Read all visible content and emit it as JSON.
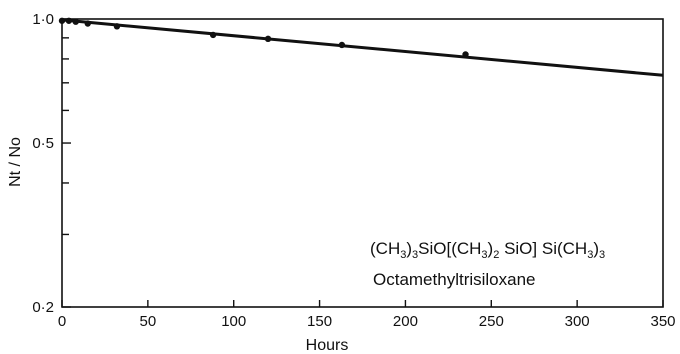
{
  "chart_data": {
    "type": "line",
    "title": "",
    "xlabel": "Hours",
    "ylabel": "Nt / No",
    "y_scale": "log",
    "xlim": [
      0,
      350
    ],
    "ylim": [
      0.2,
      1.0
    ],
    "grid": false,
    "x_ticks": [
      0,
      50,
      100,
      150,
      200,
      250,
      300,
      350
    ],
    "x_tick_labels": [
      "0",
      "50",
      "100",
      "150",
      "200",
      "250",
      "300",
      "350"
    ],
    "y_ticks": [
      0.2,
      0.3,
      0.4,
      0.5,
      0.6,
      0.7,
      0.8,
      0.9,
      1.0
    ],
    "y_tick_labels": {
      "0.2": "0·2",
      "0.5": "0·5",
      "1.0": "1·0"
    },
    "series": [
      {
        "points": [
          {
            "x": 0,
            "y": 0.99
          },
          {
            "x": 4,
            "y": 0.99
          },
          {
            "x": 8,
            "y": 0.985
          },
          {
            "x": 15,
            "y": 0.975
          },
          {
            "x": 32,
            "y": 0.96
          },
          {
            "x": 88,
            "y": 0.915
          },
          {
            "x": 120,
            "y": 0.895
          },
          {
            "x": 163,
            "y": 0.865
          },
          {
            "x": 235,
            "y": 0.82
          }
        ],
        "line": [
          {
            "x": 0,
            "y": 0.995
          },
          {
            "x": 350,
            "y": 0.73
          }
        ]
      }
    ],
    "annotations": {
      "formula": {
        "parts": [
          {
            "t": "(CH",
            "sub": false
          },
          {
            "t": "3",
            "sub": true
          },
          {
            "t": ")",
            "sub": false
          },
          {
            "t": "3",
            "sub": true
          },
          {
            "t": "SiO[(CH",
            "sub": false
          },
          {
            "t": "3",
            "sub": true
          },
          {
            "t": ")",
            "sub": false
          },
          {
            "t": "2",
            "sub": true
          },
          {
            "t": " SiO] Si(CH",
            "sub": false
          },
          {
            "t": "3",
            "sub": true
          },
          {
            "t": ")",
            "sub": false
          },
          {
            "t": "3",
            "sub": true
          }
        ]
      },
      "name": "Octamethyltrisiloxane"
    }
  }
}
